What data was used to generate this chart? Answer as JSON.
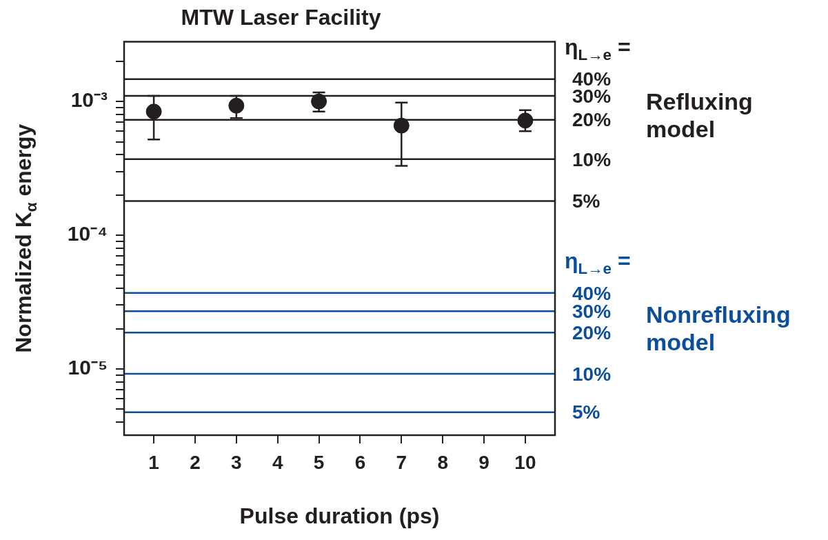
{
  "chart_data": {
    "type": "scatter",
    "title": "MTW Laser Facility",
    "xlabel": "Pulse duration (ps)",
    "ylabel": "Normalized K$_{α}$ energy",
    "log": "y",
    "marker": "circle",
    "xlim": [
      0.28,
      10.72
    ],
    "xticks": [
      1,
      2,
      3,
      4,
      5,
      6,
      7,
      8,
      9,
      10
    ],
    "ylim": [
      3.2e-06,
      0.0028
    ],
    "yticks": [
      {
        "value": 4e-06,
        "label": null
      },
      {
        "value": 5e-06,
        "label": null
      },
      {
        "value": 6e-06,
        "label": null
      },
      {
        "value": 7e-06,
        "label": null
      },
      {
        "value": 8e-06,
        "label": null
      },
      {
        "value": 9e-06,
        "label": null
      },
      {
        "value": 1e-05,
        "label": "10⁻⁵"
      },
      {
        "value": 2e-05,
        "label": null
      },
      {
        "value": 3e-05,
        "label": null
      },
      {
        "value": 4e-05,
        "label": null
      },
      {
        "value": 5e-05,
        "label": null
      },
      {
        "value": 6e-05,
        "label": null
      },
      {
        "value": 7e-05,
        "label": null
      },
      {
        "value": 8e-05,
        "label": null
      },
      {
        "value": 9e-05,
        "label": null
      },
      {
        "value": 0.0001,
        "label": "10⁻⁴"
      },
      {
        "value": 0.0002,
        "label": null
      },
      {
        "value": 0.0003,
        "label": null
      },
      {
        "value": 0.0004,
        "label": null
      },
      {
        "value": 0.0005,
        "label": null
      },
      {
        "value": 0.0006,
        "label": null
      },
      {
        "value": 0.0007,
        "label": null
      },
      {
        "value": 0.0008,
        "label": null
      },
      {
        "value": 0.0009,
        "label": null
      },
      {
        "value": 0.001,
        "label": "10⁻³"
      },
      {
        "value": 0.002,
        "label": null
      }
    ],
    "series": [
      {
        "color": "#231f20",
        "x": [
          1,
          3,
          5,
          7,
          10
        ],
        "values": [
          0.00084,
          0.00093,
          0.001,
          0.00066,
          0.00072
        ],
        "errors": [
          [
            0.00052,
            0.0011
          ],
          [
            0.00075,
            0.0011
          ],
          [
            0.00084,
            0.00117
          ],
          [
            0.00033,
            0.00098
          ],
          [
            0.0006,
            0.00086
          ]
        ]
      }
    ],
    "ref_lines": [
      {
        "axis": "y",
        "value": 0.00147,
        "color": "#231f20"
      },
      {
        "axis": "y",
        "value": 0.0011,
        "color": "#231f20"
      },
      {
        "axis": "y",
        "value": 0.00073,
        "color": "#231f20"
      },
      {
        "axis": "y",
        "value": 0.00037,
        "color": "#231f20"
      },
      {
        "axis": "y",
        "value": 0.00018,
        "color": "#231f20"
      },
      {
        "axis": "y",
        "value": 3.7e-05,
        "color": "#0b4f9c"
      },
      {
        "axis": "y",
        "value": 2.7e-05,
        "color": "#0b4f9c"
      },
      {
        "axis": "y",
        "value": 1.87e-05,
        "color": "#0b4f9c"
      },
      {
        "axis": "y",
        "value": 9.2e-06,
        "color": "#0b4f9c"
      },
      {
        "axis": "y",
        "value": 4.75e-06,
        "color": "#0b4f9c"
      }
    ],
    "annotations": [
      "η$_{L→e}$ =",
      "Refluxing model",
      "η$_{L→e}$ =",
      "Nonrefluxing model",
      "40%",
      "30%",
      "20%",
      "10%",
      "5%",
      "40%",
      "30%",
      "20%",
      "10%",
      "5%"
    ]
  }
}
